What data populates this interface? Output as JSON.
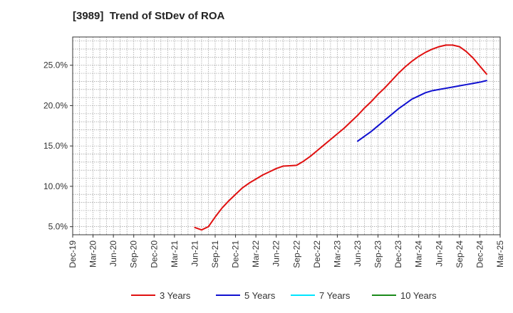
{
  "chart_data": {
    "type": "line",
    "title": "[3989]  Trend of StDev of ROA",
    "xlabel": "",
    "ylabel": "",
    "x_ticks": [
      "Dec-19",
      "Mar-20",
      "Jun-20",
      "Sep-20",
      "Dec-20",
      "Mar-21",
      "Jun-21",
      "Sep-21",
      "Dec-21",
      "Mar-22",
      "Jun-22",
      "Sep-22",
      "Dec-22",
      "Mar-23",
      "Jun-23",
      "Sep-23",
      "Dec-23",
      "Mar-24",
      "Jun-24",
      "Sep-24",
      "Dec-24",
      "Mar-25"
    ],
    "y_ticks": [
      "5.0%",
      "10.0%",
      "15.0%",
      "20.0%",
      "25.0%"
    ],
    "y_tick_values": [
      5,
      10,
      15,
      20,
      25
    ],
    "ylim": [
      4.0,
      28.5
    ],
    "xlim": [
      "Dec-19",
      "Mar-25"
    ],
    "grid": true,
    "legend_position": "bottom",
    "series": [
      {
        "name": "3 Years",
        "color": "#e01010",
        "points": [
          [
            "Jun-21",
            4.9
          ],
          [
            "Jul-21",
            4.6
          ],
          [
            "Aug-21",
            5.0
          ],
          [
            "Sep-21",
            6.2
          ],
          [
            "Oct-21",
            7.3
          ],
          [
            "Nov-21",
            8.2
          ],
          [
            "Dec-21",
            9.0
          ],
          [
            "Jan-22",
            9.8
          ],
          [
            "Feb-22",
            10.4
          ],
          [
            "Mar-22",
            10.9
          ],
          [
            "Apr-22",
            11.4
          ],
          [
            "May-22",
            11.8
          ],
          [
            "Jun-22",
            12.2
          ],
          [
            "Jul-22",
            12.5
          ],
          [
            "Aug-22",
            12.55
          ],
          [
            "Sep-22",
            12.6
          ],
          [
            "Oct-22",
            13.1
          ],
          [
            "Nov-22",
            13.7
          ],
          [
            "Dec-22",
            14.4
          ],
          [
            "Jan-23",
            15.1
          ],
          [
            "Feb-23",
            15.8
          ],
          [
            "Mar-23",
            16.5
          ],
          [
            "Apr-23",
            17.2
          ],
          [
            "May-23",
            18.0
          ],
          [
            "Jun-23",
            18.8
          ],
          [
            "Jul-23",
            19.7
          ],
          [
            "Aug-23",
            20.5
          ],
          [
            "Sep-23",
            21.4
          ],
          [
            "Oct-23",
            22.2
          ],
          [
            "Nov-23",
            23.1
          ],
          [
            "Dec-23",
            24.0
          ],
          [
            "Jan-24",
            24.8
          ],
          [
            "Feb-24",
            25.5
          ],
          [
            "Mar-24",
            26.1
          ],
          [
            "Apr-24",
            26.6
          ],
          [
            "May-24",
            27.0
          ],
          [
            "Jun-24",
            27.3
          ],
          [
            "Jul-24",
            27.5
          ],
          [
            "Aug-24",
            27.5
          ],
          [
            "Sep-24",
            27.3
          ],
          [
            "Oct-24",
            26.7
          ],
          [
            "Nov-24",
            25.9
          ],
          [
            "Dec-24",
            24.9
          ],
          [
            "Jan-25",
            23.9
          ]
        ]
      },
      {
        "name": "5 Years",
        "color": "#1010d0",
        "points": [
          [
            "Jun-23",
            15.6
          ],
          [
            "Jul-23",
            16.2
          ],
          [
            "Aug-23",
            16.8
          ],
          [
            "Sep-23",
            17.5
          ],
          [
            "Oct-23",
            18.2
          ],
          [
            "Nov-23",
            18.9
          ],
          [
            "Dec-23",
            19.6
          ],
          [
            "Jan-24",
            20.2
          ],
          [
            "Feb-24",
            20.8
          ],
          [
            "Mar-24",
            21.2
          ],
          [
            "Apr-24",
            21.6
          ],
          [
            "May-24",
            21.85
          ],
          [
            "Jun-24",
            22.0
          ],
          [
            "Jul-24",
            22.15
          ],
          [
            "Aug-24",
            22.3
          ],
          [
            "Sep-24",
            22.45
          ],
          [
            "Oct-24",
            22.6
          ],
          [
            "Nov-24",
            22.75
          ],
          [
            "Dec-24",
            22.9
          ],
          [
            "Jan-25",
            23.1
          ]
        ]
      },
      {
        "name": "7 Years",
        "color": "#00e5ff",
        "points": []
      },
      {
        "name": "10 Years",
        "color": "#1a8a1a",
        "points": []
      }
    ]
  }
}
